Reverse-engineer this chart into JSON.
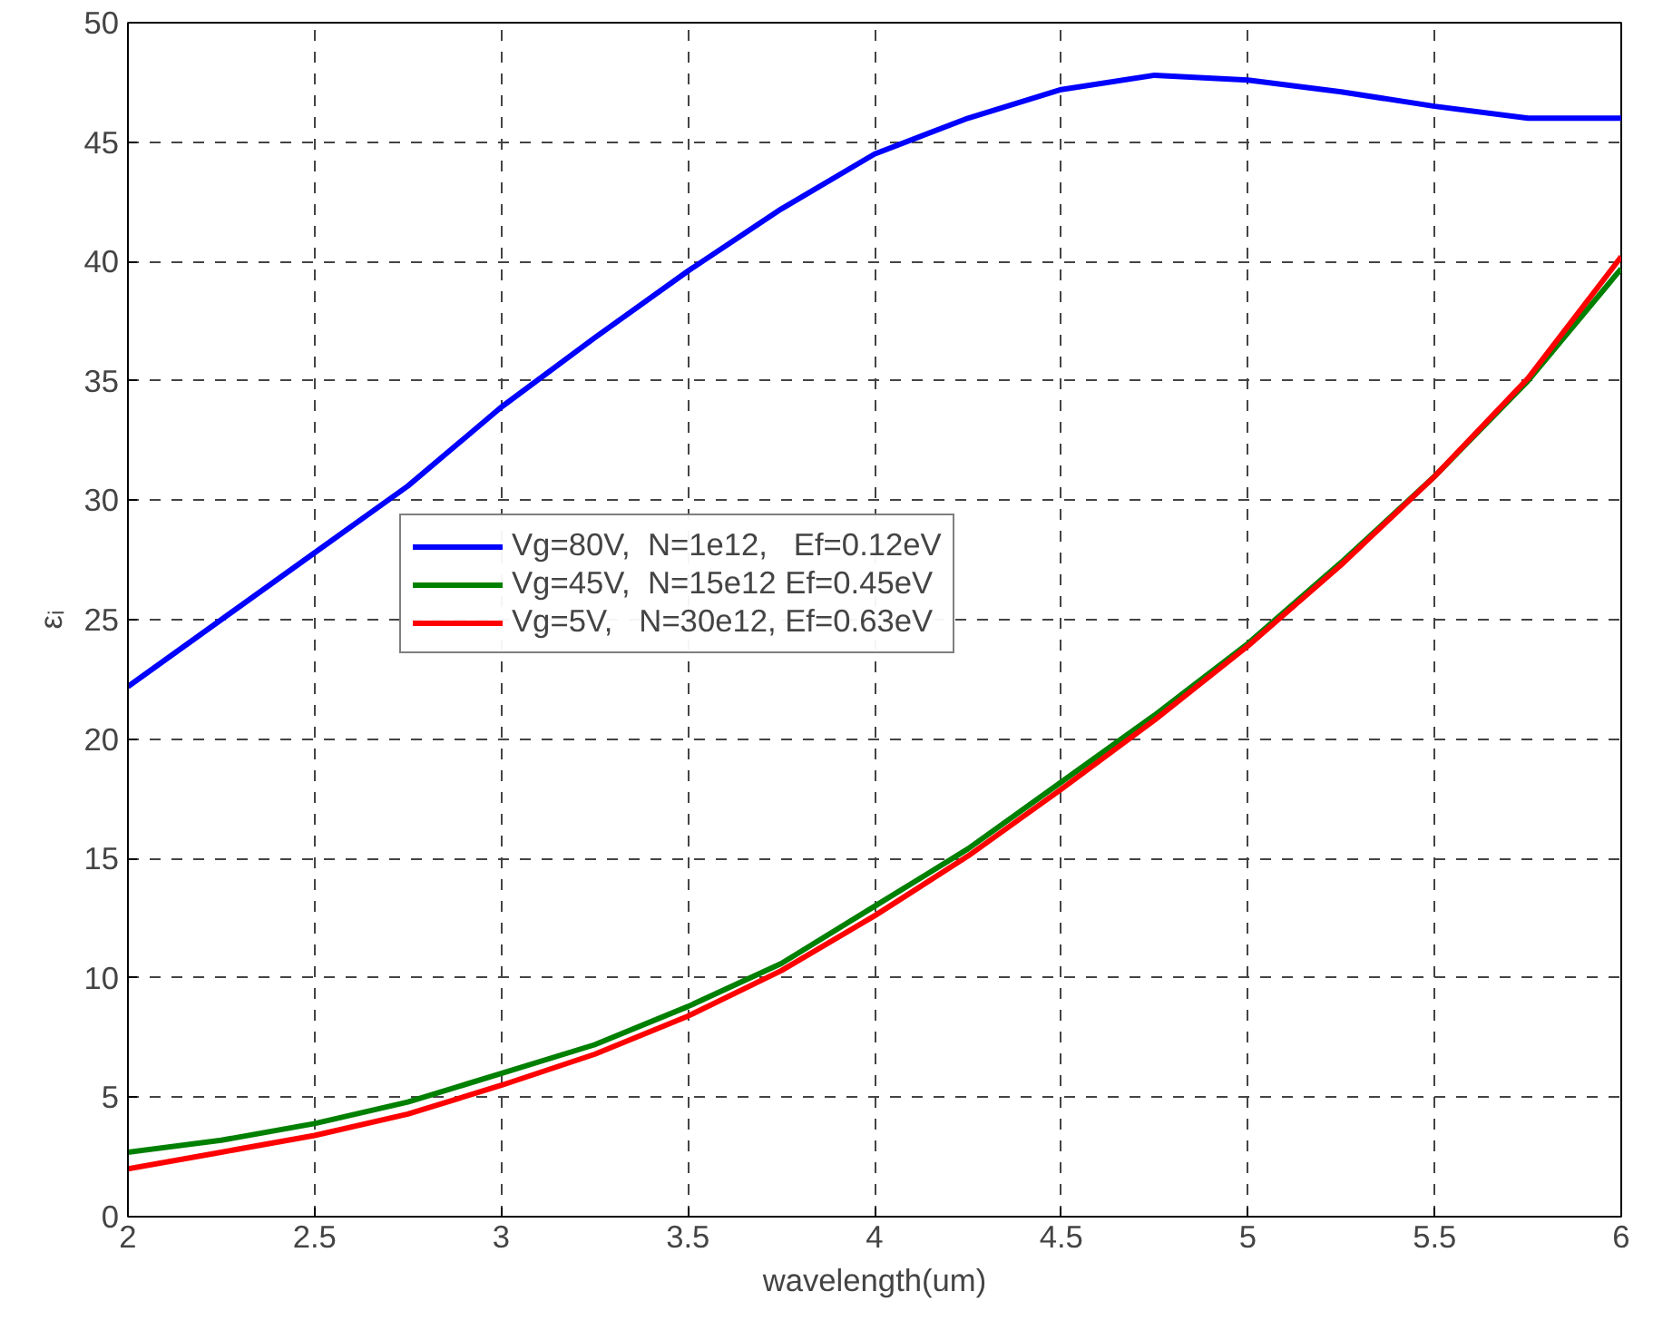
{
  "chart_data": {
    "type": "line",
    "xlabel": "wavelength(um)",
    "ylabel": "εᵢ",
    "x": [
      2,
      2.25,
      2.5,
      2.75,
      3,
      3.25,
      3.5,
      3.75,
      4,
      4.25,
      4.5,
      4.75,
      5,
      5.25,
      5.5,
      5.75,
      6
    ],
    "series": [
      {
        "name": "Vg=80V,  N=1e12,   Ef=0.12eV",
        "color": "#0000ff",
        "values": [
          22.2,
          25.0,
          27.8,
          30.6,
          33.9,
          36.8,
          39.6,
          42.2,
          44.5,
          46.0,
          47.2,
          47.8,
          47.6,
          47.1,
          46.5,
          46.0,
          46.0
        ]
      },
      {
        "name": "Vg=45V,  N=15e12 Ef=0.45eV",
        "color": "#008000",
        "values": [
          2.7,
          3.2,
          3.9,
          4.8,
          6.0,
          7.2,
          8.8,
          10.6,
          13.0,
          15.4,
          18.2,
          21.0,
          24.0,
          27.4,
          31.0,
          35.0,
          39.7
        ]
      },
      {
        "name": "Vg=5V,   N=30e12, Ef=0.63eV",
        "color": "#ff0000",
        "values": [
          2.0,
          2.7,
          3.4,
          4.3,
          5.5,
          6.8,
          8.4,
          10.3,
          12.6,
          15.1,
          17.9,
          20.8,
          23.9,
          27.3,
          31.0,
          35.1,
          40.2
        ]
      }
    ],
    "xlim": [
      2,
      6
    ],
    "xticks": [
      2,
      2.5,
      3,
      3.5,
      4,
      4.5,
      5,
      5.5,
      6
    ],
    "ylim": [
      0,
      50
    ],
    "yticks": [
      0,
      5,
      10,
      15,
      20,
      25,
      30,
      35,
      40,
      45,
      50
    ],
    "grid": true,
    "legend": "center",
    "line_style": "solid"
  }
}
